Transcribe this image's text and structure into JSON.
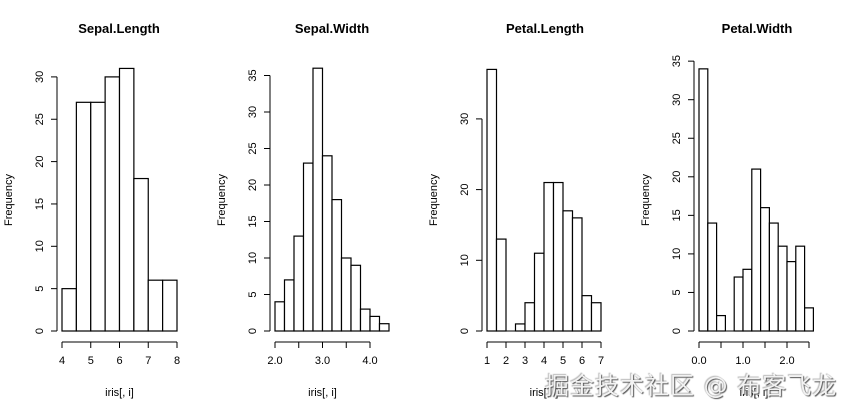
{
  "watermark": "掘金技术社区 @ 布客飞龙",
  "chart_data": [
    {
      "type": "bar",
      "subtype": "histogram",
      "title": "Sepal.Length",
      "xlabel": "iris[, i]",
      "ylabel": "Frequency",
      "bin_edges": [
        4.0,
        4.5,
        5.0,
        5.5,
        6.0,
        6.5,
        7.0,
        7.5,
        8.0
      ],
      "values": [
        5,
        27,
        27,
        30,
        31,
        18,
        6,
        6
      ],
      "xticks": [
        "4",
        "5",
        "6",
        "7",
        "8"
      ],
      "xtick_values": [
        4,
        5,
        6,
        7,
        8
      ],
      "yticks": [
        "0",
        "5",
        "10",
        "15",
        "20",
        "25",
        "30"
      ],
      "ytick_values": [
        0,
        5,
        10,
        15,
        20,
        25,
        30
      ],
      "xlim": [
        4,
        8
      ],
      "ylim": [
        0,
        31
      ],
      "layout": {
        "x0px": 62,
        "x1px": 177,
        "y0px": 331,
        "pxPerUnitY": 8.47,
        "yAxisX": 57,
        "xAxisY": 342,
        "titleX": 119
      }
    },
    {
      "type": "bar",
      "subtype": "histogram",
      "title": "Sepal.Width",
      "xlabel": "iris[, i]",
      "ylabel": "Frequency",
      "bin_edges": [
        2.0,
        2.2,
        2.4,
        2.6,
        2.8,
        3.0,
        3.2,
        3.4,
        3.6,
        3.8,
        4.0,
        4.2,
        4.4
      ],
      "values": [
        4,
        7,
        13,
        23,
        36,
        24,
        18,
        10,
        9,
        3,
        2,
        1
      ],
      "xticks": [
        "2.0",
        "",
        "3.0",
        "",
        "4.0"
      ],
      "xtick_values": [
        2.0,
        2.5,
        3.0,
        3.5,
        4.0
      ],
      "yticks": [
        "0",
        "5",
        "10",
        "15",
        "20",
        "25",
        "30",
        "35"
      ],
      "ytick_values": [
        0,
        5,
        10,
        15,
        20,
        25,
        30,
        35
      ],
      "xlim": [
        2.0,
        4.4
      ],
      "ylim": [
        0,
        36
      ],
      "layout": {
        "x0px": 275,
        "x1px": 370,
        "xv0": 2.0,
        "xv1": 4.0,
        "y0px": 331,
        "pxPerUnitY": 7.3,
        "yAxisX": 270,
        "xAxisY": 342,
        "titleX": 332
      }
    },
    {
      "type": "bar",
      "subtype": "histogram",
      "title": "Petal.Length",
      "xlabel": "iris[, i]",
      "ylabel": "Frequency",
      "bin_edges": [
        1.0,
        1.5,
        2.0,
        2.5,
        3.0,
        3.5,
        4.0,
        4.5,
        5.0,
        5.5,
        6.0,
        6.5,
        7.0
      ],
      "values": [
        37,
        13,
        0,
        1,
        4,
        11,
        21,
        21,
        17,
        16,
        5,
        4
      ],
      "xticks": [
        "1",
        "2",
        "3",
        "4",
        "5",
        "6",
        "7"
      ],
      "xtick_values": [
        1,
        2,
        3,
        4,
        5,
        6,
        7
      ],
      "yticks": [
        "0",
        "10",
        "20",
        "30"
      ],
      "ytick_values": [
        0,
        10,
        20,
        30
      ],
      "xlim": [
        1,
        7
      ],
      "ylim": [
        0,
        37
      ],
      "layout": {
        "x0px": 487,
        "x1px": 601,
        "xv0": 1,
        "xv1": 7,
        "y0px": 331,
        "pxPerUnitY": 7.07,
        "yAxisX": 482,
        "xAxisY": 342,
        "titleX": 545
      }
    },
    {
      "type": "bar",
      "subtype": "histogram",
      "title": "Petal.Width",
      "xlabel": "iris[, i]",
      "ylabel": "Frequency",
      "bin_edges": [
        0.0,
        0.2,
        0.4,
        0.6,
        0.8,
        1.0,
        1.2,
        1.4,
        1.6,
        1.8,
        2.0,
        2.2,
        2.4,
        2.6
      ],
      "values": [
        34,
        14,
        2,
        0,
        7,
        8,
        21,
        16,
        14,
        11,
        9,
        11,
        3
      ],
      "xticks": [
        "0.0",
        "",
        "1.0",
        "",
        "2.0",
        ""
      ],
      "xtick_values": [
        0.0,
        0.5,
        1.0,
        1.5,
        2.0,
        2.5
      ],
      "yticks": [
        "0",
        "5",
        "10",
        "15",
        "20",
        "25",
        "30",
        "35"
      ],
      "ytick_values": [
        0,
        5,
        10,
        15,
        20,
        25,
        30,
        35
      ],
      "xlim": [
        0.0,
        2.6
      ],
      "ylim": [
        0,
        35
      ],
      "layout": {
        "x0px": 699,
        "x1px": 787,
        "xv0": 0.0,
        "xv1": 2.0,
        "y0px": 331,
        "pxPerUnitY": 7.71,
        "yAxisX": 694,
        "xAxisY": 342,
        "titleX": 757
      }
    }
  ]
}
